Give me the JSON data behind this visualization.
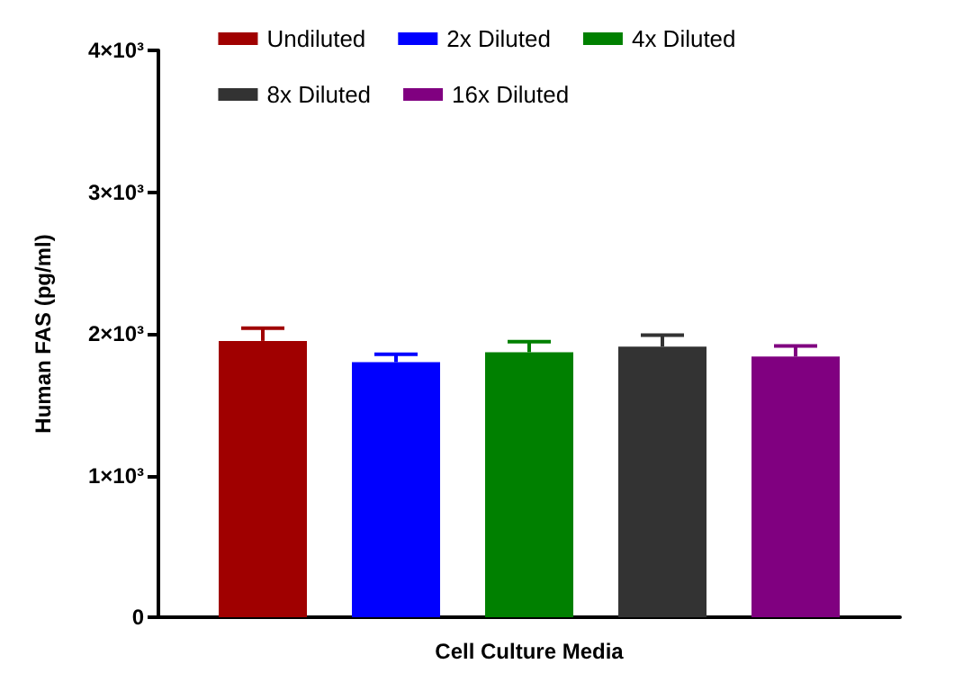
{
  "chart_data": {
    "type": "bar",
    "categories": [
      null
    ],
    "xlabel": "Cell Culture Media",
    "ylabel": "Human FAS (pg/ml)",
    "series": [
      {
        "name": "Undiluted",
        "color": "#a00000",
        "values": [
          1950
        ],
        "errors": [
          90
        ]
      },
      {
        "name": "2x Diluted",
        "color": "#0000ff",
        "values": [
          1800
        ],
        "errors": [
          55
        ]
      },
      {
        "name": "4x Diluted",
        "color": "#008000",
        "values": [
          1870
        ],
        "errors": [
          75
        ]
      },
      {
        "name": "8x Diluted",
        "color": "#333333",
        "values": [
          1910
        ],
        "errors": [
          80
        ]
      },
      {
        "name": "16x Diluted",
        "color": "#800080",
        "values": [
          1840
        ],
        "errors": [
          75
        ]
      }
    ],
    "ylim": [
      0,
      4000
    ],
    "yticks": [
      0,
      {
        "value": 1000,
        "label": "1×10³"
      },
      {
        "value": 2000,
        "label": "2×10³"
      },
      {
        "value": 3000,
        "label": "3×10³"
      },
      {
        "value": 4000,
        "label": "4×10³"
      }
    ],
    "grid": false,
    "legend": "top"
  }
}
